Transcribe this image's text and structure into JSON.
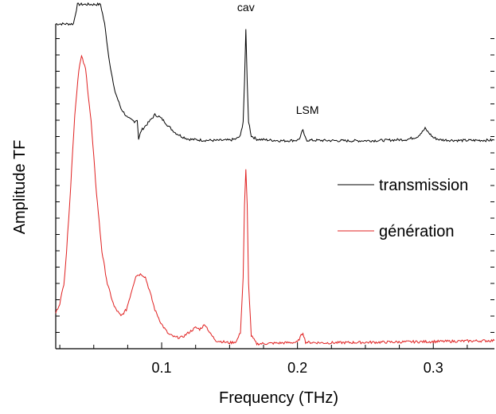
{
  "chart_data": {
    "type": "line",
    "title": "",
    "xlabel": "Frequency (THz)",
    "ylabel": "Amplitude TF",
    "xlim": [
      0.022,
      0.345
    ],
    "ylim": [
      0,
      1
    ],
    "y_tick_labels": "none",
    "x_ticks": [
      0.1,
      0.2,
      0.3
    ],
    "x_tick_labels": [
      "0.1",
      "0.2",
      "0.3"
    ],
    "grid": false,
    "legend_position": "right",
    "annotations": [
      {
        "text": "cav",
        "x": 0.162
      },
      {
        "text": "LSM",
        "x": 0.205
      }
    ],
    "series": [
      {
        "name": "transmission",
        "color": "#000000",
        "noise": 0.004,
        "points": [
          [
            0.022,
            1.0
          ],
          [
            0.03,
            1.0
          ],
          [
            0.035,
            1.0
          ],
          [
            0.038,
            1.06
          ],
          [
            0.055,
            1.06
          ],
          [
            0.058,
            1.0
          ],
          [
            0.061,
            0.9
          ],
          [
            0.065,
            0.8
          ],
          [
            0.07,
            0.74
          ],
          [
            0.075,
            0.71
          ],
          [
            0.08,
            0.7
          ],
          [
            0.082,
            0.705
          ],
          [
            0.083,
            0.645
          ],
          [
            0.085,
            0.672
          ],
          [
            0.09,
            0.695
          ],
          [
            0.093,
            0.71
          ],
          [
            0.095,
            0.72
          ],
          [
            0.098,
            0.715
          ],
          [
            0.102,
            0.7
          ],
          [
            0.105,
            0.685
          ],
          [
            0.11,
            0.665
          ],
          [
            0.115,
            0.653
          ],
          [
            0.12,
            0.645
          ],
          [
            0.13,
            0.642
          ],
          [
            0.14,
            0.641
          ],
          [
            0.15,
            0.642
          ],
          [
            0.155,
            0.646
          ],
          [
            0.158,
            0.655
          ],
          [
            0.16,
            0.7
          ],
          [
            0.161,
            0.82
          ],
          [
            0.162,
            0.98
          ],
          [
            0.163,
            0.82
          ],
          [
            0.164,
            0.7
          ],
          [
            0.166,
            0.655
          ],
          [
            0.17,
            0.645
          ],
          [
            0.18,
            0.642
          ],
          [
            0.19,
            0.64
          ],
          [
            0.2,
            0.642
          ],
          [
            0.202,
            0.65
          ],
          [
            0.204,
            0.675
          ],
          [
            0.205,
            0.655
          ],
          [
            0.207,
            0.642
          ],
          [
            0.22,
            0.641
          ],
          [
            0.24,
            0.64
          ],
          [
            0.26,
            0.641
          ],
          [
            0.28,
            0.644
          ],
          [
            0.288,
            0.652
          ],
          [
            0.292,
            0.668
          ],
          [
            0.294,
            0.678
          ],
          [
            0.296,
            0.668
          ],
          [
            0.3,
            0.65
          ],
          [
            0.305,
            0.643
          ],
          [
            0.32,
            0.641
          ],
          [
            0.345,
            0.642
          ]
        ]
      },
      {
        "name": "génération",
        "color": "#e02020",
        "noise": 0.004,
        "points": [
          [
            0.022,
            0.11
          ],
          [
            0.025,
            0.14
          ],
          [
            0.028,
            0.2
          ],
          [
            0.03,
            0.3
          ],
          [
            0.033,
            0.5
          ],
          [
            0.036,
            0.72
          ],
          [
            0.039,
            0.86
          ],
          [
            0.041,
            0.9
          ],
          [
            0.044,
            0.86
          ],
          [
            0.048,
            0.7
          ],
          [
            0.052,
            0.48
          ],
          [
            0.056,
            0.3
          ],
          [
            0.06,
            0.2
          ],
          [
            0.065,
            0.13
          ],
          [
            0.07,
            0.1
          ],
          [
            0.074,
            0.12
          ],
          [
            0.078,
            0.18
          ],
          [
            0.081,
            0.225
          ],
          [
            0.085,
            0.23
          ],
          [
            0.088,
            0.22
          ],
          [
            0.091,
            0.18
          ],
          [
            0.095,
            0.12
          ],
          [
            0.1,
            0.075
          ],
          [
            0.105,
            0.045
          ],
          [
            0.11,
            0.035
          ],
          [
            0.115,
            0.035
          ],
          [
            0.12,
            0.05
          ],
          [
            0.125,
            0.065
          ],
          [
            0.128,
            0.06
          ],
          [
            0.132,
            0.075
          ],
          [
            0.136,
            0.045
          ],
          [
            0.14,
            0.025
          ],
          [
            0.15,
            0.018
          ],
          [
            0.155,
            0.022
          ],
          [
            0.158,
            0.05
          ],
          [
            0.16,
            0.22
          ],
          [
            0.161,
            0.44
          ],
          [
            0.162,
            0.55
          ],
          [
            0.163,
            0.44
          ],
          [
            0.164,
            0.2
          ],
          [
            0.166,
            0.04
          ],
          [
            0.17,
            0.015
          ],
          [
            0.19,
            0.018
          ],
          [
            0.2,
            0.02
          ],
          [
            0.204,
            0.05
          ],
          [
            0.206,
            0.02
          ],
          [
            0.22,
            0.018
          ],
          [
            0.26,
            0.02
          ],
          [
            0.3,
            0.022
          ],
          [
            0.345,
            0.025
          ]
        ]
      }
    ]
  }
}
